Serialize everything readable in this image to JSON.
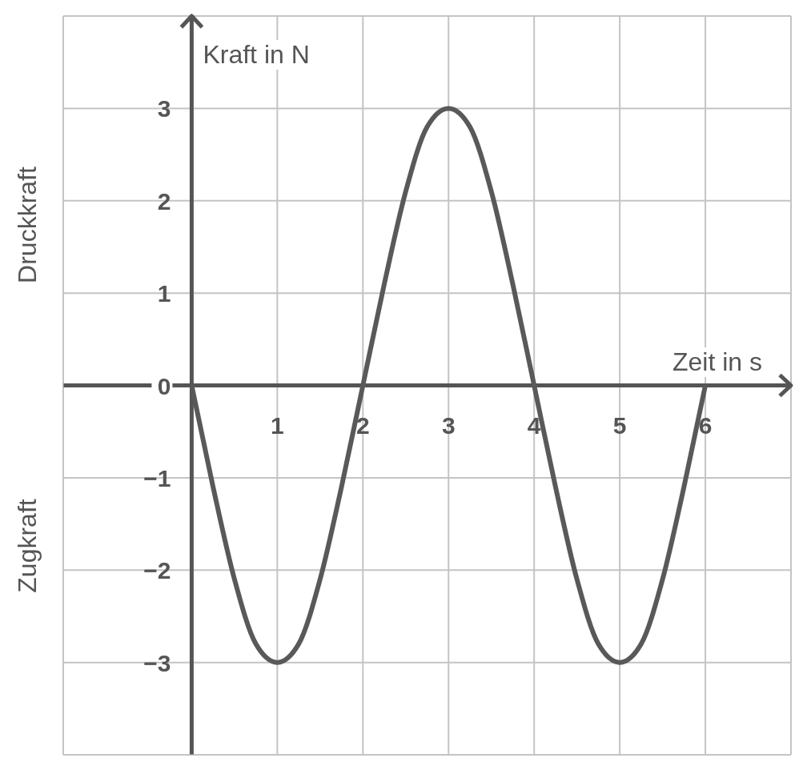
{
  "chart_data": {
    "type": "line",
    "xlabel": "Zeit in s",
    "ylabel": "Kraft in N",
    "annotations": [
      "Druckkraft",
      "Zugkraft"
    ],
    "x": [
      0,
      0.25,
      0.5,
      0.75,
      1,
      1.25,
      1.5,
      1.75,
      2,
      2.25,
      2.5,
      2.75,
      3,
      3.25,
      3.5,
      3.75,
      4,
      4.25,
      4.5,
      4.75,
      5,
      5.25,
      5.5,
      5.75,
      6
    ],
    "series": [
      {
        "color": "#595959",
        "values": [
          0,
          -1.1,
          -2.1,
          -2.8,
          -3,
          -2.8,
          -2.1,
          -1.1,
          0,
          1.1,
          2.1,
          2.8,
          3,
          2.8,
          2.1,
          1.1,
          0,
          -1.1,
          -2.1,
          -2.8,
          -3,
          -2.8,
          -2.1,
          -1.1,
          0
        ]
      }
    ],
    "xlim": [
      -1.5,
      7
    ],
    "ylim": [
      -4,
      4
    ],
    "xticks": [
      1,
      2,
      3,
      4,
      5,
      6
    ],
    "yticks": [
      {
        "value": -3,
        "label": "−3"
      },
      {
        "value": -2,
        "label": "−2"
      },
      {
        "value": -1,
        "label": "−1"
      },
      0,
      1,
      2,
      3
    ],
    "grid": true,
    "marker": "none",
    "line_style": "solid"
  }
}
